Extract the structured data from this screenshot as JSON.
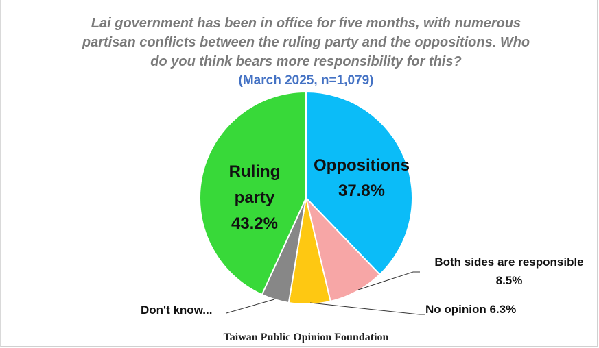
{
  "chart_data": {
    "type": "pie",
    "title_lines": [
      "Lai government has been in office for five months, with numerous",
      "partisan conflicts between the ruling party and the oppositions. Who",
      "do you think bears more responsibility for this?"
    ],
    "subtitle": "(March 2025, n=1,079)",
    "slices": [
      {
        "name": "Oppositions",
        "value": 37.8,
        "label_lines": [
          "Oppositions",
          "37.8%"
        ],
        "color": "#0bbcf8"
      },
      {
        "name": "Both sides are responsible",
        "value": 8.5,
        "label_lines": [
          "Both sides are responsible",
          "8.5%"
        ],
        "color": "#f7a6a6"
      },
      {
        "name": "No opinion",
        "value": 6.3,
        "label_lines": [
          "No opinion 6.3%"
        ],
        "color": "#fec812"
      },
      {
        "name": "Don't know...",
        "value": 4.2,
        "label_lines": [
          "Don't know..."
        ],
        "color": "#878787"
      },
      {
        "name": "Ruling party",
        "value": 43.2,
        "label_lines": [
          "Ruling",
          "party",
          "43.2%"
        ],
        "color": "#38d939"
      }
    ],
    "source": "Taiwan Public Opinion Foundation"
  }
}
